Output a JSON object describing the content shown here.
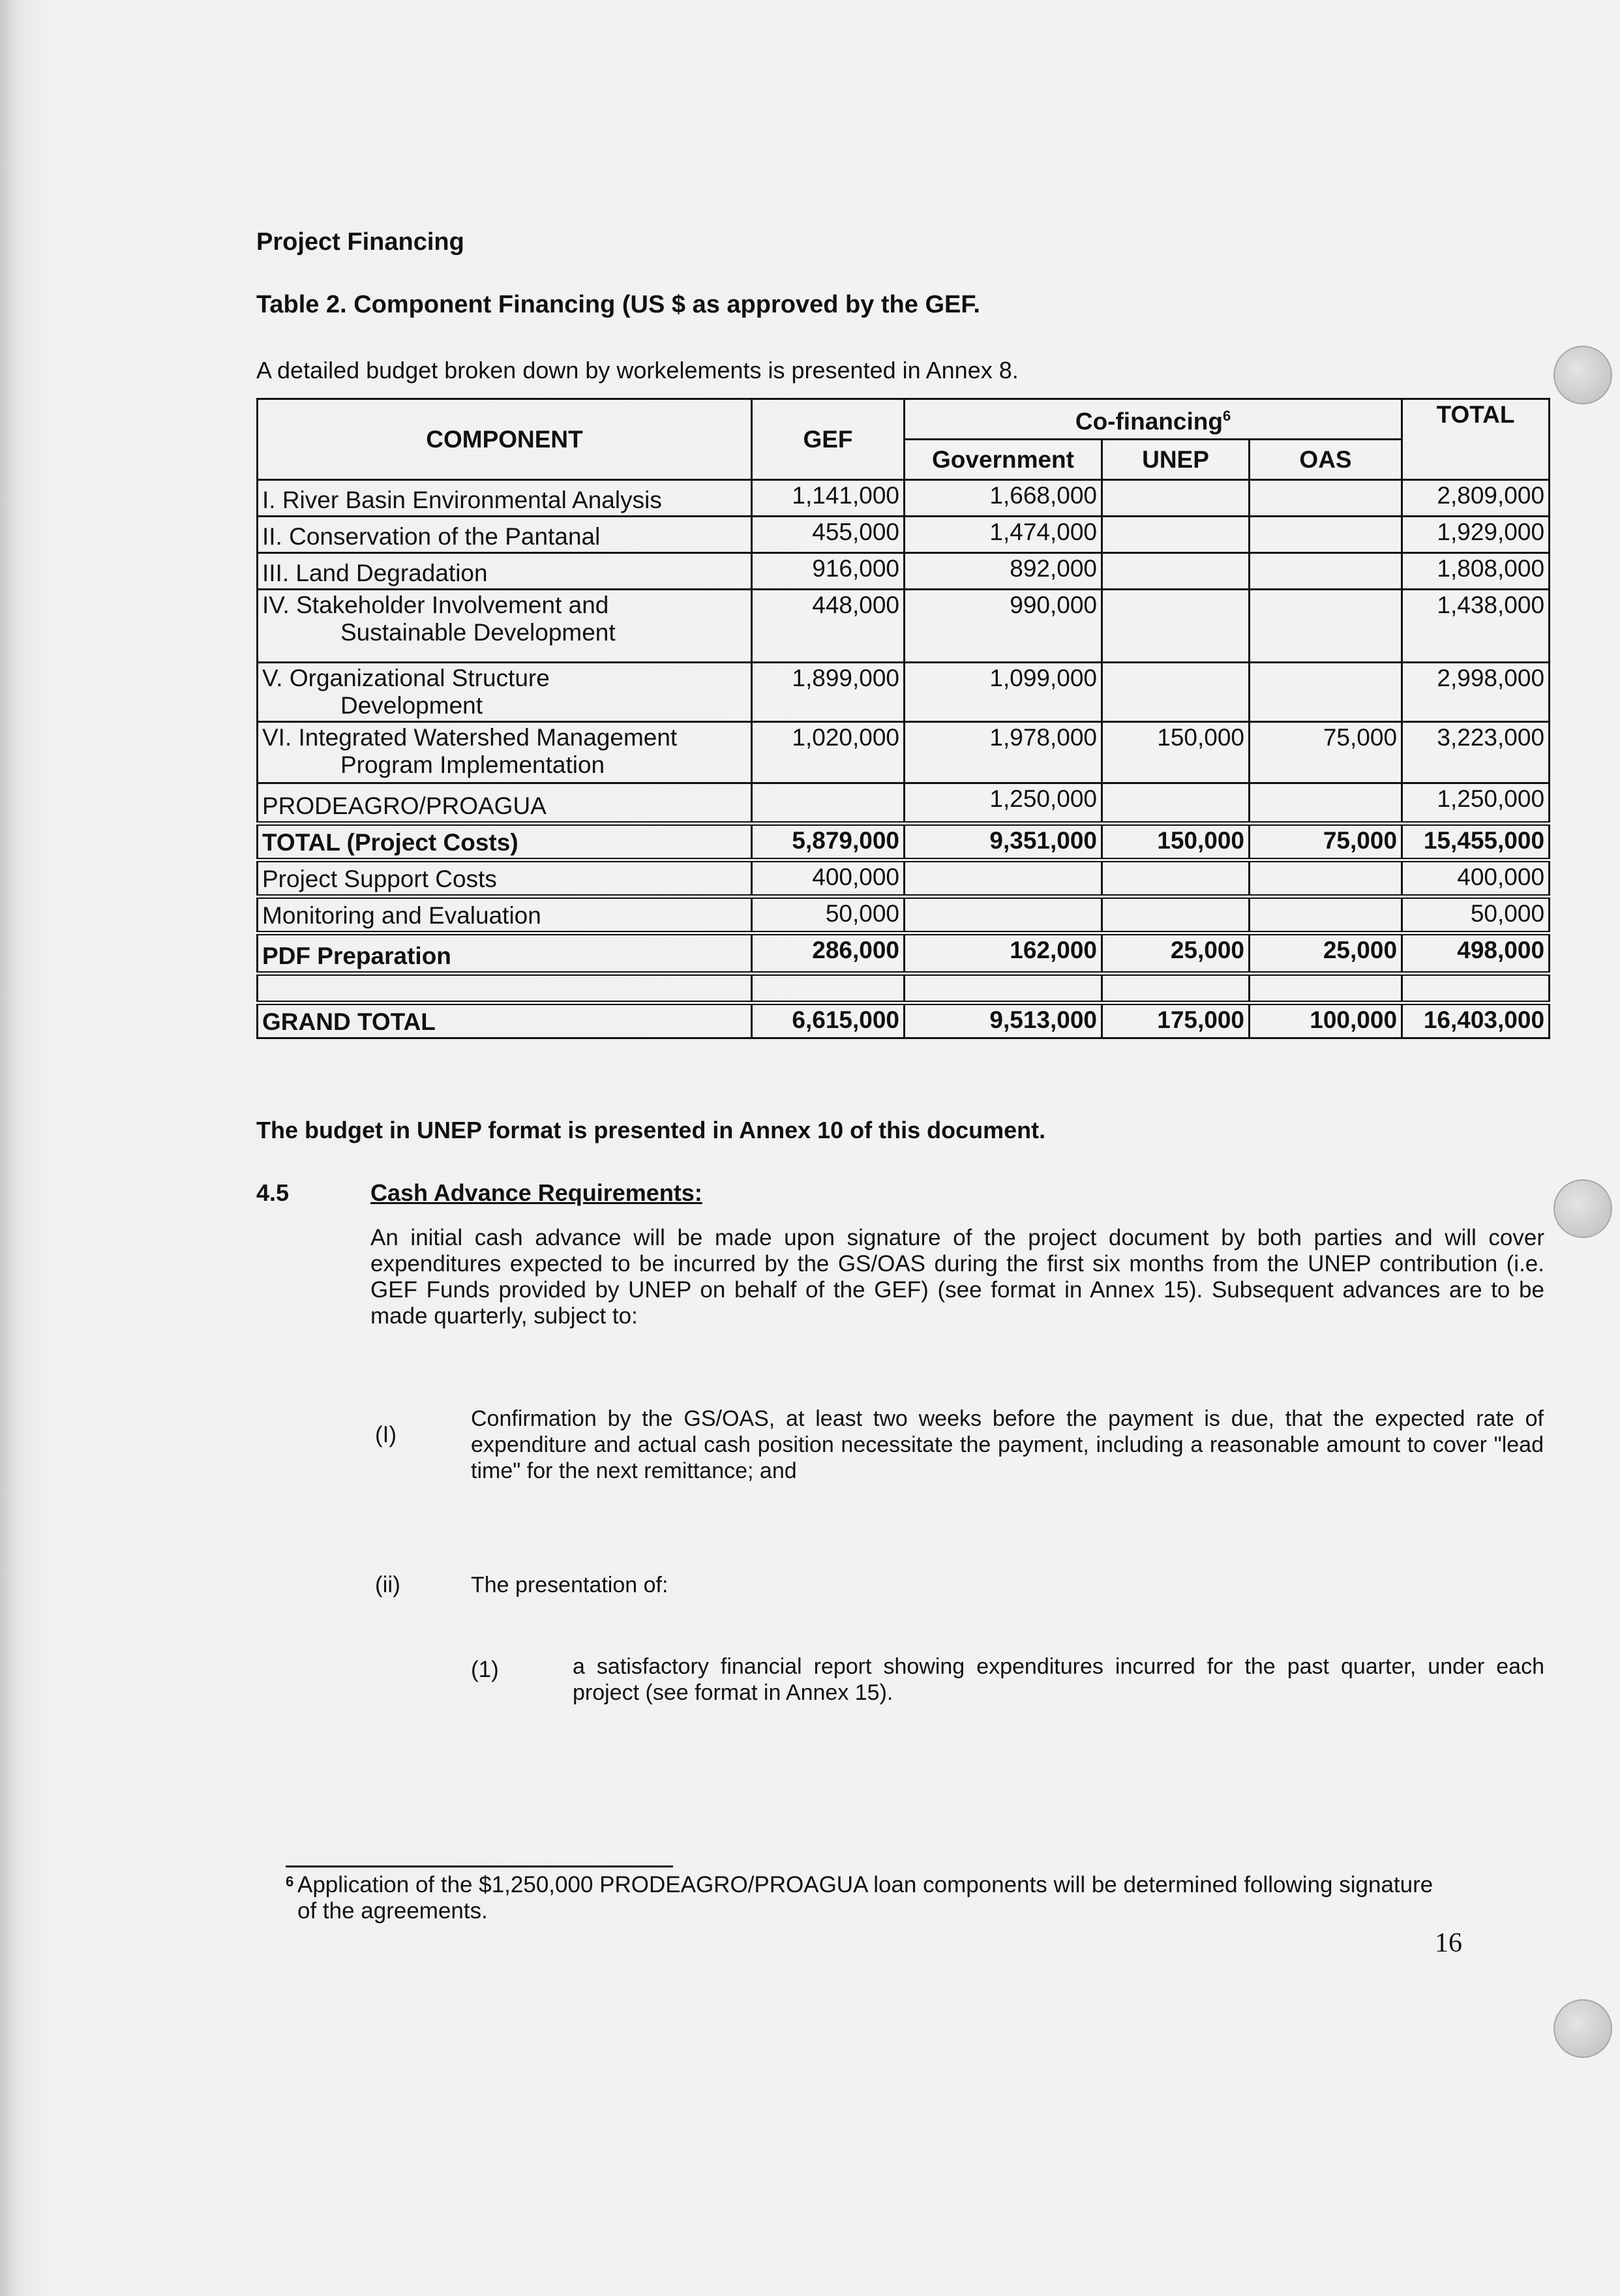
{
  "section_title": "Project Financing",
  "table_title": "Table 2. Component Financing (US $ as approved by the GEF.",
  "table_intro": "A detailed budget broken down by workelements is presented in Annex 8.",
  "table": {
    "headers": {
      "component": "COMPONENT",
      "gef": "GEF",
      "cofinancing": "Co-financing",
      "cofinancing_footnote": "6",
      "government": "Government",
      "unep": "UNEP",
      "oas": "OAS",
      "total": "TOTAL"
    },
    "rows": [
      {
        "component": "I. River Basin Environmental Analysis",
        "component_line2": "",
        "gef": "1,141,000",
        "government": "1,668,000",
        "unep": "",
        "oas": "",
        "total": "2,809,000",
        "bold": false
      },
      {
        "component": "II. Conservation of the Pantanal",
        "component_line2": "",
        "gef": "455,000",
        "government": "1,474,000",
        "unep": "",
        "oas": "",
        "total": "1,929,000",
        "bold": false
      },
      {
        "component": "III. Land Degradation",
        "component_line2": "",
        "gef": "916,000",
        "government": "892,000",
        "unep": "",
        "oas": "",
        "total": "1,808,000",
        "bold": false
      },
      {
        "component": "IV. Stakeholder Involvement and",
        "component_line2": "Sustainable Development",
        "gef": "448,000",
        "government": "990,000",
        "unep": "",
        "oas": "",
        "total": "1,438,000",
        "bold": false
      },
      {
        "component": "V. Organizational Structure",
        "component_line2": "Development",
        "gef": "1,899,000",
        "government": "1,099,000",
        "unep": "",
        "oas": "",
        "total": "2,998,000",
        "bold": false
      },
      {
        "component": "VI. Integrated Watershed Management",
        "component_line2": "Program Implementation",
        "gef": "1,020,000",
        "government": "1,978,000",
        "unep": "150,000",
        "oas": "75,000",
        "total": "3,223,000",
        "bold": false
      },
      {
        "component": "PRODEAGRO/PROAGUA",
        "component_line2": "",
        "gef": "",
        "government": "1,250,000",
        "unep": "",
        "oas": "",
        "total": "1,250,000",
        "bold": false
      },
      {
        "component": "TOTAL (Project Costs)",
        "component_line2": "",
        "gef": "5,879,000",
        "government": "9,351,000",
        "unep": "150,000",
        "oas": "75,000",
        "total": "15,455,000",
        "bold": true
      },
      {
        "component": "Project Support Costs",
        "component_line2": "",
        "gef": "400,000",
        "government": "",
        "unep": "",
        "oas": "",
        "total": "400,000",
        "bold": false
      },
      {
        "component": "Monitoring and Evaluation",
        "component_line2": "",
        "gef": "50,000",
        "government": "",
        "unep": "",
        "oas": "",
        "total": "50,000",
        "bold": false
      },
      {
        "component": "PDF Preparation",
        "component_line2": "",
        "gef": "286,000",
        "government": "162,000",
        "unep": "25,000",
        "oas": "25,000",
        "total": "498,000",
        "bold": true
      },
      {
        "component": "",
        "component_line2": "",
        "gef": "",
        "government": "",
        "unep": "",
        "oas": "",
        "total": "",
        "bold": false
      },
      {
        "component": "GRAND TOTAL",
        "component_line2": "",
        "gef": "6,615,000",
        "government": "9,513,000",
        "unep": "175,000",
        "oas": "100,000",
        "total": "16,403,000",
        "bold": true
      }
    ]
  },
  "unep_note": "The budget in UNEP format is presented in Annex 10 of this document.",
  "section_4_5": {
    "number": "4.5",
    "heading": "Cash Advance Requirements:",
    "paragraph": "An initial cash advance will be made upon signature of the project document by both parties and will cover expenditures expected to be incurred by the GS/OAS during the first six months from the UNEP contribution (i.e. GEF Funds provided by UNEP on behalf of the GEF) (see format in Annex 15). Subsequent advances are to be made quarterly, subject to:",
    "items": [
      {
        "marker": "(I)",
        "text": "Confirmation by the GS/OAS, at least two weeks before the payment is due, that the expected rate of expenditure and actual cash position necessitate the payment, including a reasonable amount to cover \"lead time\" for the next remittance; and"
      },
      {
        "marker": "(ii)",
        "text": "The presentation of:"
      }
    ],
    "subitems": [
      {
        "marker": "(1)",
        "text": "a satisfactory financial report showing expenditures incurred for the past quarter, under each project (see format in Annex 15)."
      }
    ]
  },
  "footnote": {
    "marker": "6",
    "text": "Application of the $1,250,000 PRODEAGRO/PROAGUA loan components will be determined following signature of the agreements."
  },
  "page_number": "16"
}
